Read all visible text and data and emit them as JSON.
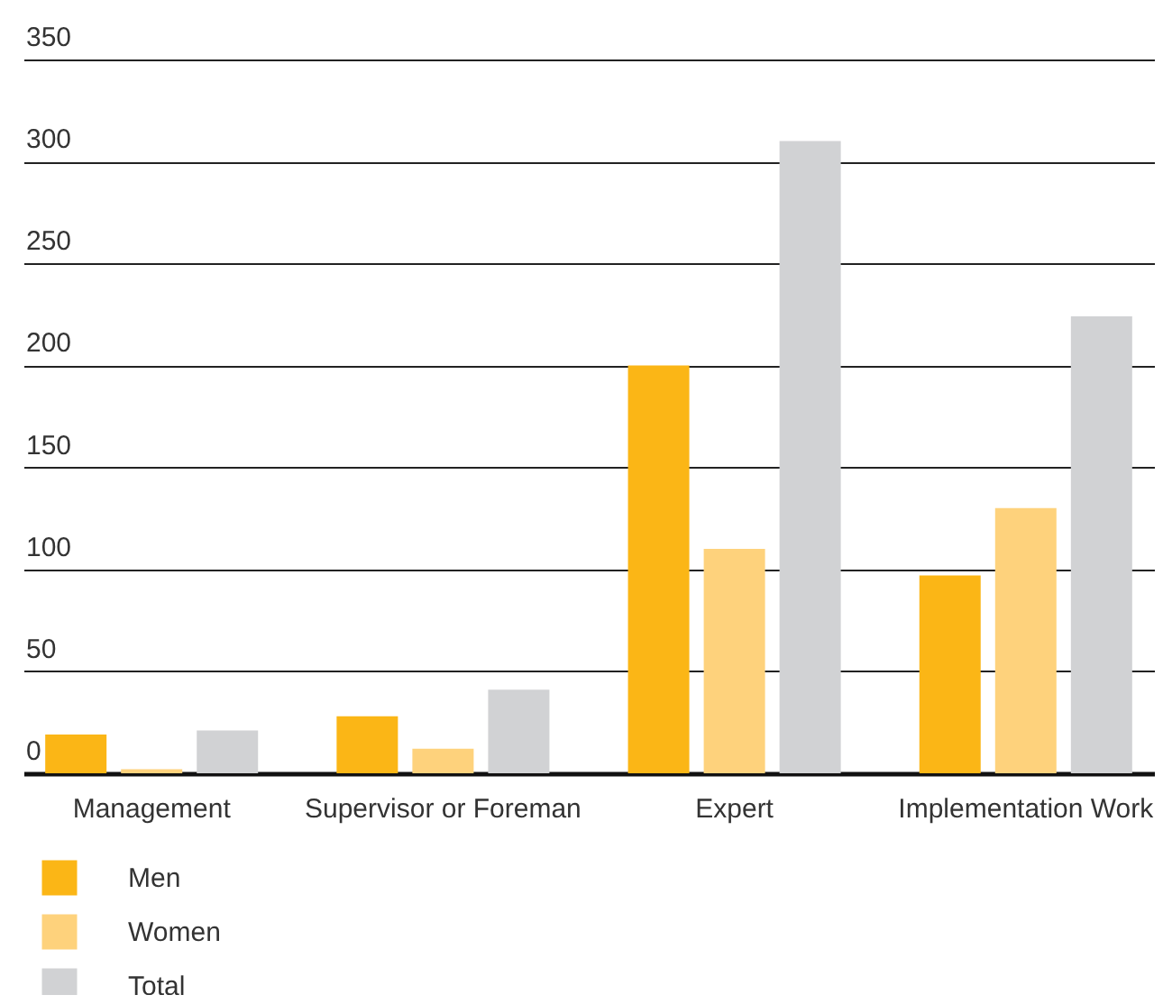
{
  "chart_data": {
    "type": "bar",
    "categories": [
      "Management",
      "Supervisor or Foreman",
      "Expert",
      "Implementation Work"
    ],
    "series": [
      {
        "name": "Men",
        "color": "#fbb616",
        "values": [
          19,
          28,
          200,
          97
        ]
      },
      {
        "name": "Women",
        "color": "#fed27c",
        "values": [
          2,
          12,
          110,
          130
        ]
      },
      {
        "name": "Total",
        "color": "#d1d2d4",
        "values": [
          21,
          41,
          310,
          224
        ]
      }
    ],
    "ylim": [
      0,
      350
    ],
    "yticks": [
      0,
      50,
      100,
      150,
      200,
      250,
      300,
      350
    ],
    "grid": "y",
    "legend": "bottom left"
  }
}
